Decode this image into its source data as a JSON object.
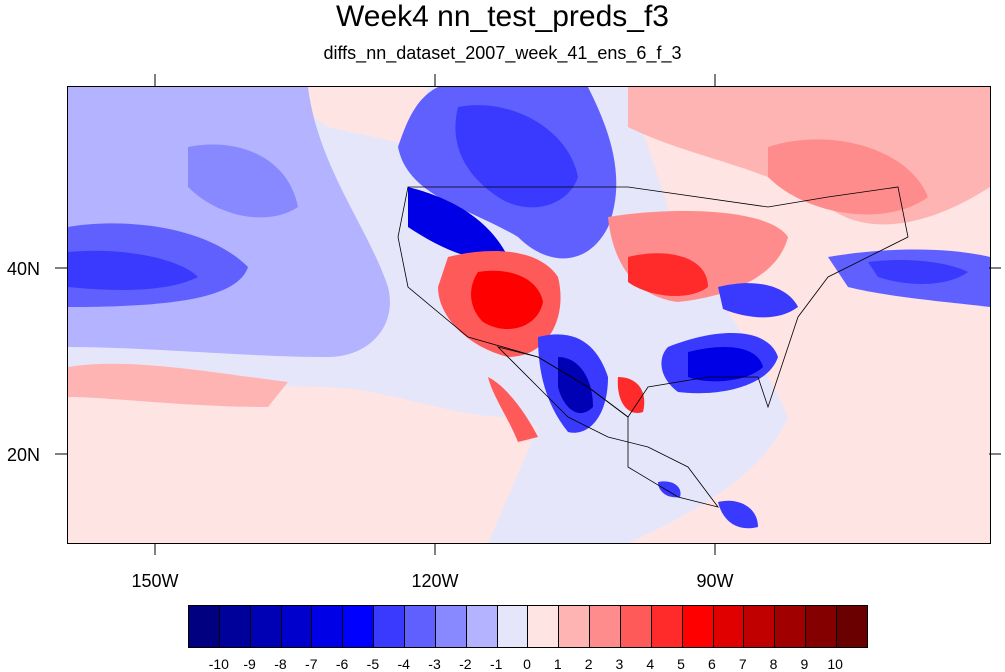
{
  "title": "Week4 nn_test_preds_f3",
  "subtitle": "diffs_nn_dataset_2007_week_41_ens_6_f_3",
  "map": {
    "field": "diffs",
    "lat_labels": [
      "40N",
      "20N"
    ],
    "lon_labels": [
      "150W",
      "120W",
      "90W"
    ]
  },
  "colorbar": {
    "colors": [
      "#000080",
      "#00009a",
      "#0000b4",
      "#0000cd",
      "#0000e6",
      "#0000ff",
      "#3a3aff",
      "#6060ff",
      "#8888ff",
      "#b3b3ff",
      "#e6e6fa",
      "#ffe4e4",
      "#ffb4b4",
      "#ff8c8c",
      "#ff5a5a",
      "#ff2a2a",
      "#ff0000",
      "#e00000",
      "#c00000",
      "#a00000",
      "#840000",
      "#6a0000"
    ],
    "labels": [
      "-10",
      "-9",
      "-8",
      "-7",
      "-6",
      "-5",
      "-4",
      "-3",
      "-2",
      "-1",
      "0",
      "1",
      "2",
      "3",
      "4",
      "5",
      "6",
      "7",
      "8",
      "9",
      "10"
    ]
  }
}
